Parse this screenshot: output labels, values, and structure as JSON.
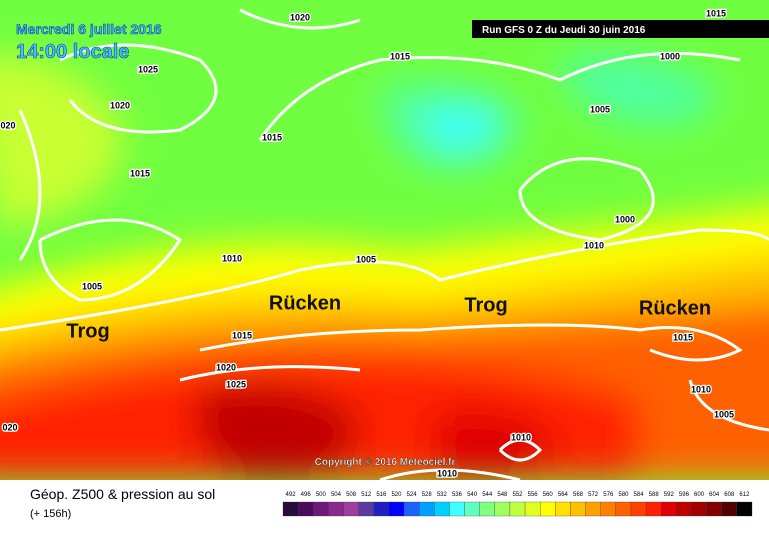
{
  "header": {
    "date": "Mercredi 6 juillet 2016",
    "time": "14:00 locale",
    "run": "Run GFS 0 Z du Jeudi 30 juin 2016"
  },
  "map": {
    "isobar_labels": [
      1020,
      1015,
      1025,
      1020,
      "020",
      1015,
      1000,
      1005,
      1015,
      1015,
      1000,
      1010,
      1010,
      1005,
      1005,
      1015,
      1015,
      1020,
      1025,
      1010,
      1005,
      "020",
      1010,
      1010
    ],
    "annotations": [
      "Trog",
      "Rücken",
      "Trog",
      "Rücken"
    ],
    "copyright": "Copyright © 2016 Meteociel.fr"
  },
  "legend": {
    "title": "Géop. Z500 & pression au sol",
    "lead": "(+ 156h)",
    "ticks": [
      492,
      496,
      500,
      504,
      508,
      512,
      516,
      520,
      524,
      528,
      532,
      536,
      540,
      544,
      548,
      552,
      556,
      560,
      564,
      568,
      572,
      576,
      580,
      584,
      588,
      592,
      596,
      600,
      604,
      608,
      612
    ],
    "colors": [
      "#2a0a3a",
      "#4b0a5a",
      "#6e1a7a",
      "#8a2a8a",
      "#a03ca0",
      "#5a3aa0",
      "#2020c0",
      "#0000ff",
      "#2060ff",
      "#00a0ff",
      "#00d0ff",
      "#40ffff",
      "#60ffc0",
      "#80ff80",
      "#a0ff60",
      "#c0ff40",
      "#e0ff20",
      "#ffff00",
      "#ffe000",
      "#ffc000",
      "#ffa000",
      "#ff8000",
      "#ff6000",
      "#ff4000",
      "#ff2000",
      "#e00000",
      "#c00000",
      "#a00000",
      "#800000",
      "#500000",
      "#000000"
    ]
  }
}
